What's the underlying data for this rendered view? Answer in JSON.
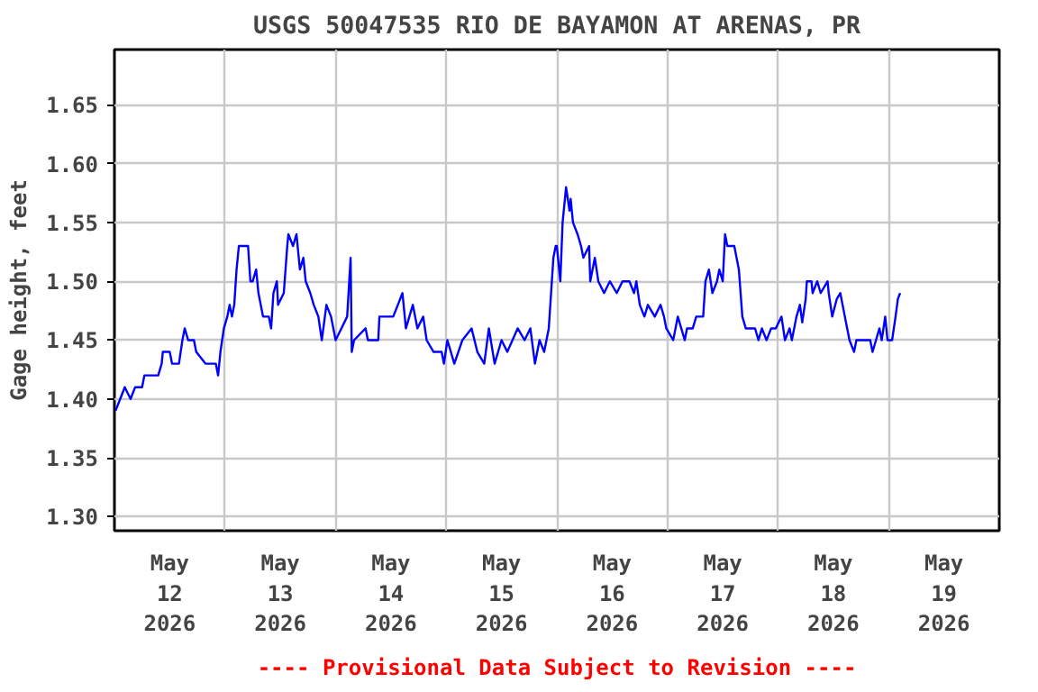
{
  "chart_data": {
    "type": "line",
    "title": "USGS 50047535 RIO DE BAYAMON AT ARENAS, PR",
    "ylabel": "Gage height, feet",
    "annotations": [
      "---- Provisional Data Subject to Revision ----"
    ],
    "xlim": [
      "2026-05-12T00:00",
      "2026-05-20T00:00"
    ],
    "xticks": [
      {
        "value": "2026-05-12T00:00",
        "label": null
      },
      {
        "value": "2026-05-12T12:00",
        "label": "May\n12\n2026"
      },
      {
        "value": "2026-05-13T00:00",
        "label": null
      },
      {
        "value": "2026-05-13T12:00",
        "label": "May\n13\n2026"
      },
      {
        "value": "2026-05-14T00:00",
        "label": null
      },
      {
        "value": "2026-05-14T12:00",
        "label": "May\n14\n2026"
      },
      {
        "value": "2026-05-15T00:00",
        "label": null
      },
      {
        "value": "2026-05-15T12:00",
        "label": "May\n15\n2026"
      },
      {
        "value": "2026-05-16T00:00",
        "label": null
      },
      {
        "value": "2026-05-16T12:00",
        "label": "May\n16\n2026"
      },
      {
        "value": "2026-05-17T00:00",
        "label": null
      },
      {
        "value": "2026-05-17T12:00",
        "label": "May\n17\n2026"
      },
      {
        "value": "2026-05-18T00:00",
        "label": null
      },
      {
        "value": "2026-05-18T12:00",
        "label": "May\n18\n2026"
      },
      {
        "value": "2026-05-19T00:00",
        "label": null
      },
      {
        "value": "2026-05-19T12:00",
        "label": "May\n19\n2026"
      },
      {
        "value": "2026-05-20T00:00",
        "label": null
      }
    ],
    "ylim": [
      1.288,
      1.697
    ],
    "yticks": [
      {
        "value": 1.3,
        "label": "1.30"
      },
      1.35,
      {
        "value": 1.4,
        "label": "1.40"
      },
      1.45,
      {
        "value": 1.5,
        "label": "1.50"
      },
      1.55,
      {
        "value": 1.6,
        "label": "1.60"
      },
      1.65
    ],
    "grid": true,
    "marker": "none",
    "line_style": "solid",
    "series": [
      {
        "color": "#0000ff",
        "x": [
          "2026-05-12T00:15",
          "2026-05-12T01:15",
          "2026-05-12T02:15",
          "2026-05-12T03:30",
          "2026-05-12T04:30",
          "2026-05-12T06:00",
          "2026-05-12T06:30",
          "2026-05-12T09:30",
          "2026-05-12T10:15",
          "2026-05-12T10:30",
          "2026-05-12T12:00",
          "2026-05-12T12:30",
          "2026-05-12T14:00",
          "2026-05-12T14:45",
          "2026-05-12T15:15",
          "2026-05-12T16:00",
          "2026-05-12T17:15",
          "2026-05-12T17:45",
          "2026-05-12T19:45",
          "2026-05-12T22:00",
          "2026-05-12T22:30",
          "2026-05-12T23:00",
          "2026-05-12T23:45",
          "2026-05-13T00:30",
          "2026-05-13T01:00",
          "2026-05-13T01:30",
          "2026-05-13T02:00",
          "2026-05-13T02:30",
          "2026-05-13T03:00",
          "2026-05-13T05:00",
          "2026-05-13T05:30",
          "2026-05-13T06:00",
          "2026-05-13T06:45",
          "2026-05-13T07:15",
          "2026-05-13T08:15",
          "2026-05-13T09:30",
          "2026-05-13T10:00",
          "2026-05-13T10:30",
          "2026-05-13T11:15",
          "2026-05-13T11:30",
          "2026-05-13T12:45",
          "2026-05-13T13:30",
          "2026-05-13T13:45",
          "2026-05-13T14:45",
          "2026-05-13T15:30",
          "2026-05-13T16:15",
          "2026-05-13T17:00",
          "2026-05-13T17:30",
          "2026-05-13T18:30",
          "2026-05-13T19:15",
          "2026-05-13T20:15",
          "2026-05-13T21:00",
          "2026-05-13T22:00",
          "2026-05-13T23:00",
          "2026-05-14T00:00",
          "2026-05-14T01:15",
          "2026-05-14T02:30",
          "2026-05-14T03:15",
          "2026-05-14T03:30",
          "2026-05-14T04:00",
          "2026-05-14T06:30",
          "2026-05-14T07:00",
          "2026-05-14T09:15",
          "2026-05-14T09:30",
          "2026-05-14T12:30",
          "2026-05-14T13:30",
          "2026-05-14T14:30",
          "2026-05-14T15:15",
          "2026-05-14T16:00",
          "2026-05-14T16:45",
          "2026-05-14T17:45",
          "2026-05-14T19:00",
          "2026-05-14T19:45",
          "2026-05-14T21:15",
          "2026-05-14T23:00",
          "2026-05-14T23:30",
          "2026-05-15T00:15",
          "2026-05-15T01:45",
          "2026-05-15T03:30",
          "2026-05-15T05:30",
          "2026-05-15T06:45",
          "2026-05-15T08:15",
          "2026-05-15T09:15",
          "2026-05-15T10:30",
          "2026-05-15T12:00",
          "2026-05-15T13:15",
          "2026-05-15T15:30",
          "2026-05-15T17:00",
          "2026-05-15T18:15",
          "2026-05-15T19:15",
          "2026-05-15T20:15",
          "2026-05-15T21:15",
          "2026-05-15T22:15",
          "2026-05-15T22:45",
          "2026-05-15T23:15",
          "2026-05-15T23:45",
          "2026-05-16T00:00",
          "2026-05-16T00:45",
          "2026-05-16T01:15",
          "2026-05-16T01:45",
          "2026-05-16T02:00",
          "2026-05-16T02:45",
          "2026-05-16T03:00",
          "2026-05-16T03:30",
          "2026-05-16T04:30",
          "2026-05-16T05:15",
          "2026-05-16T05:45",
          "2026-05-16T07:00",
          "2026-05-16T07:15",
          "2026-05-16T08:15",
          "2026-05-16T09:00",
          "2026-05-16T10:15",
          "2026-05-16T11:30",
          "2026-05-16T13:00",
          "2026-05-16T14:15",
          "2026-05-16T15:45",
          "2026-05-16T16:45",
          "2026-05-16T17:15",
          "2026-05-16T18:00",
          "2026-05-16T19:00",
          "2026-05-16T19:45",
          "2026-05-16T21:15",
          "2026-05-16T22:30",
          "2026-05-16T23:15",
          "2026-05-16T23:45",
          "2026-05-17T01:15",
          "2026-05-17T02:15",
          "2026-05-17T03:00",
          "2026-05-17T03:45",
          "2026-05-17T04:15",
          "2026-05-17T05:30",
          "2026-05-17T06:15",
          "2026-05-17T07:45",
          "2026-05-17T08:15",
          "2026-05-17T09:00",
          "2026-05-17T09:45",
          "2026-05-17T10:45",
          "2026-05-17T11:15",
          "2026-05-17T12:00",
          "2026-05-17T12:30",
          "2026-05-17T13:00",
          "2026-05-17T14:30",
          "2026-05-17T15:30",
          "2026-05-17T16:15",
          "2026-05-17T17:00",
          "2026-05-17T19:00",
          "2026-05-17T19:45",
          "2026-05-17T20:30",
          "2026-05-17T21:30",
          "2026-05-17T22:30",
          "2026-05-17T23:30",
          "2026-05-18T00:45",
          "2026-05-18T01:30",
          "2026-05-18T02:30",
          "2026-05-18T03:00",
          "2026-05-18T04:00",
          "2026-05-18T04:45",
          "2026-05-18T05:15",
          "2026-05-18T06:00",
          "2026-05-18T06:15",
          "2026-05-18T07:15",
          "2026-05-18T07:30",
          "2026-05-18T08:30",
          "2026-05-18T09:15",
          "2026-05-18T10:45",
          "2026-05-18T11:00",
          "2026-05-18T11:45",
          "2026-05-18T12:45",
          "2026-05-18T13:30",
          "2026-05-18T14:30",
          "2026-05-18T15:00",
          "2026-05-18T15:30",
          "2026-05-18T16:30",
          "2026-05-18T17:00",
          "2026-05-18T20:00",
          "2026-05-18T20:30",
          "2026-05-18T21:15",
          "2026-05-18T22:00",
          "2026-05-18T22:30",
          "2026-05-18T23:15",
          "2026-05-18T23:45",
          "2026-05-19T00:45",
          "2026-05-19T01:30",
          "2026-05-19T02:00",
          "2026-05-19T02:30"
        ],
        "values": [
          1.39,
          1.4,
          1.41,
          1.4,
          1.41,
          1.41,
          1.42,
          1.42,
          1.43,
          1.44,
          1.44,
          1.43,
          1.43,
          1.45,
          1.46,
          1.45,
          1.45,
          1.44,
          1.43,
          1.43,
          1.42,
          1.44,
          1.46,
          1.47,
          1.48,
          1.47,
          1.48,
          1.51,
          1.53,
          1.53,
          1.5,
          1.5,
          1.51,
          1.49,
          1.47,
          1.47,
          1.46,
          1.49,
          1.5,
          1.48,
          1.49,
          1.53,
          1.54,
          1.53,
          1.54,
          1.51,
          1.52,
          1.5,
          1.49,
          1.48,
          1.47,
          1.45,
          1.48,
          1.47,
          1.45,
          1.46,
          1.47,
          1.52,
          1.44,
          1.45,
          1.46,
          1.45,
          1.45,
          1.47,
          1.47,
          1.48,
          1.49,
          1.46,
          1.47,
          1.48,
          1.46,
          1.47,
          1.45,
          1.44,
          1.44,
          1.43,
          1.45,
          1.43,
          1.45,
          1.46,
          1.44,
          1.43,
          1.46,
          1.43,
          1.45,
          1.44,
          1.46,
          1.45,
          1.46,
          1.43,
          1.45,
          1.44,
          1.46,
          1.49,
          1.52,
          1.53,
          1.53,
          1.5,
          1.55,
          1.57,
          1.58,
          1.56,
          1.57,
          1.55,
          1.54,
          1.53,
          1.52,
          1.53,
          1.5,
          1.52,
          1.5,
          1.49,
          1.5,
          1.49,
          1.5,
          1.5,
          1.49,
          1.5,
          1.48,
          1.47,
          1.48,
          1.47,
          1.48,
          1.47,
          1.46,
          1.45,
          1.47,
          1.46,
          1.45,
          1.46,
          1.46,
          1.47,
          1.47,
          1.5,
          1.51,
          1.49,
          1.5,
          1.51,
          1.5,
          1.54,
          1.53,
          1.53,
          1.51,
          1.47,
          1.46,
          1.46,
          1.45,
          1.46,
          1.45,
          1.46,
          1.46,
          1.47,
          1.45,
          1.46,
          1.45,
          1.47,
          1.48,
          1.465,
          1.485,
          1.5,
          1.5,
          1.49,
          1.5,
          1.49,
          1.5,
          1.49,
          1.47,
          1.485,
          1.49,
          1.47,
          1.46,
          1.45,
          1.44,
          1.45,
          1.45,
          1.44,
          1.45,
          1.46,
          1.45,
          1.47,
          1.45,
          1.45,
          1.47,
          1.485,
          1.49
        ]
      }
    ]
  }
}
